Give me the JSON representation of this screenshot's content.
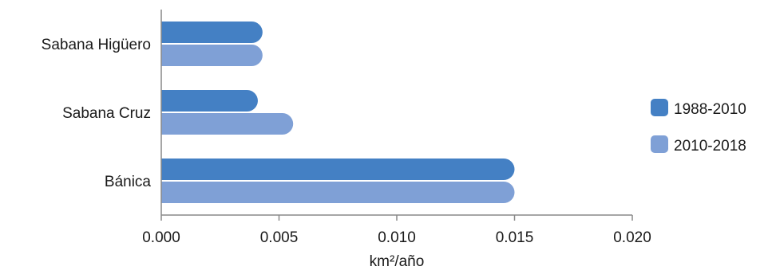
{
  "chart_data": {
    "type": "bar",
    "orientation": "horizontal",
    "categories": [
      "Sabana Higüero",
      "Sabana Cruz",
      "Bánica"
    ],
    "series": [
      {
        "name": "1988-2010",
        "color": "#4480c4",
        "values": [
          0.0043,
          0.0041,
          0.015
        ]
      },
      {
        "name": "2010-2018",
        "color": "#7fa0d6",
        "values": [
          0.0043,
          0.0056,
          0.015
        ]
      }
    ],
    "xlim": [
      0,
      0.02
    ],
    "xticks": [
      0,
      0.005,
      0.01,
      0.015,
      0.02
    ],
    "xtick_labels": [
      "0.000",
      "0.005",
      "0.010",
      "0.015",
      "0.020"
    ],
    "xlabel": "km²/año",
    "ylabel": "",
    "title": "",
    "grid": false,
    "legend_position": "right"
  }
}
